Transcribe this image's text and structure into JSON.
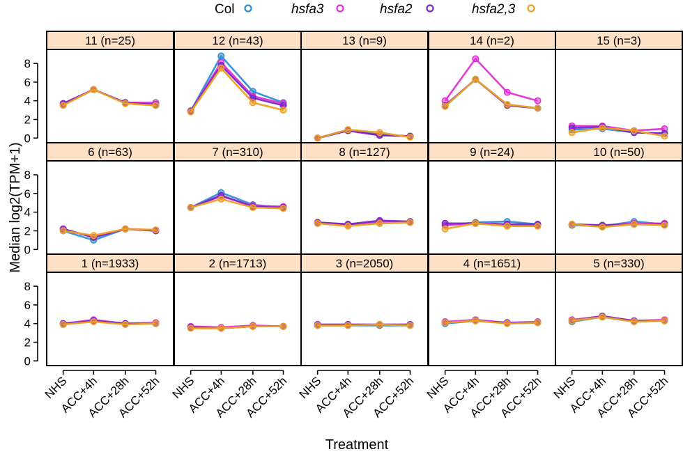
{
  "chart_data": {
    "type": "line",
    "title": "",
    "xlabel": "Treatment",
    "ylabel": "Median log2(TPM+1)",
    "categories": [
      "NHS",
      "ACC+4h",
      "ACC+28h",
      "ACC+52h"
    ],
    "ylim": [
      -0.5,
      9.5
    ],
    "yticks": [
      0,
      2,
      4,
      6,
      8
    ],
    "grid": false,
    "legend_position": "top",
    "legend": [
      {
        "name": "Col",
        "color": "#2e8fd6",
        "italic": false
      },
      {
        "name": "hsfa3",
        "color": "#e030d8",
        "italic": true
      },
      {
        "name": "hsfa2",
        "color": "#7a28c8",
        "italic": true
      },
      {
        "name": "hsfa2,3",
        "color": "#f0a020",
        "italic": true
      }
    ],
    "panels": [
      {
        "label": "11 (n=25)",
        "series": [
          {
            "name": "Col",
            "values": [
              3.6,
              5.2,
              3.8,
              3.5
            ]
          },
          {
            "name": "hsfa3",
            "values": [
              3.7,
              5.2,
              3.8,
              3.8
            ]
          },
          {
            "name": "hsfa2",
            "values": [
              3.7,
              5.2,
              3.8,
              3.6
            ]
          },
          {
            "name": "hsfa2,3",
            "values": [
              3.5,
              5.2,
              3.7,
              3.5
            ]
          }
        ]
      },
      {
        "label": "12 (n=43)",
        "series": [
          {
            "name": "Col",
            "values": [
              2.9,
              8.8,
              5.0,
              3.8
            ]
          },
          {
            "name": "hsfa3",
            "values": [
              2.9,
              8.1,
              4.5,
              3.7
            ]
          },
          {
            "name": "hsfa2",
            "values": [
              2.9,
              7.8,
              4.3,
              3.5
            ]
          },
          {
            "name": "hsfa2,3",
            "values": [
              2.8,
              7.5,
              3.8,
              3.0
            ]
          }
        ]
      },
      {
        "label": "13 (n=9)",
        "series": [
          {
            "name": "Col",
            "values": [
              0.0,
              0.9,
              0.4,
              0.2
            ]
          },
          {
            "name": "hsfa3",
            "values": [
              0.0,
              0.8,
              0.3,
              0.2
            ]
          },
          {
            "name": "hsfa2",
            "values": [
              0.0,
              0.8,
              0.3,
              0.2
            ]
          },
          {
            "name": "hsfa2,3",
            "values": [
              0.0,
              0.9,
              0.6,
              0.1
            ]
          }
        ]
      },
      {
        "label": "14 (n=2)",
        "series": [
          {
            "name": "Col",
            "values": [
              3.4,
              6.3,
              3.6,
              3.2
            ]
          },
          {
            "name": "hsfa3",
            "values": [
              4.0,
              8.5,
              4.9,
              4.0
            ]
          },
          {
            "name": "hsfa2",
            "values": [
              3.5,
              6.3,
              3.5,
              3.2
            ]
          },
          {
            "name": "hsfa2,3",
            "values": [
              3.4,
              6.3,
              3.6,
              3.2
            ]
          }
        ]
      },
      {
        "label": "15 (n=3)",
        "series": [
          {
            "name": "Col",
            "values": [
              0.9,
              1.0,
              0.6,
              0.5
            ]
          },
          {
            "name": "hsfa3",
            "values": [
              1.3,
              1.3,
              0.8,
              1.0
            ]
          },
          {
            "name": "hsfa2",
            "values": [
              1.1,
              1.2,
              0.6,
              0.5
            ]
          },
          {
            "name": "hsfa2,3",
            "values": [
              0.6,
              1.1,
              0.8,
              0.2
            ]
          }
        ]
      },
      {
        "label": "6 (n=63)",
        "series": [
          {
            "name": "Col",
            "values": [
              2.0,
              1.0,
              2.2,
              2.0
            ]
          },
          {
            "name": "hsfa3",
            "values": [
              2.2,
              1.3,
              2.2,
              2.1
            ]
          },
          {
            "name": "hsfa2",
            "values": [
              2.2,
              1.3,
              2.2,
              2.0
            ]
          },
          {
            "name": "hsfa2,3",
            "values": [
              2.0,
              1.5,
              2.2,
              2.1
            ]
          }
        ]
      },
      {
        "label": "7 (n=310)",
        "series": [
          {
            "name": "Col",
            "values": [
              4.5,
              6.1,
              4.8,
              4.5
            ]
          },
          {
            "name": "hsfa3",
            "values": [
              4.5,
              5.7,
              4.7,
              4.6
            ]
          },
          {
            "name": "hsfa2",
            "values": [
              4.5,
              5.8,
              4.6,
              4.5
            ]
          },
          {
            "name": "hsfa2,3",
            "values": [
              4.5,
              5.4,
              4.5,
              4.4
            ]
          }
        ]
      },
      {
        "label": "8 (n=127)",
        "series": [
          {
            "name": "Col",
            "values": [
              2.8,
              2.7,
              2.8,
              2.9
            ]
          },
          {
            "name": "hsfa3",
            "values": [
              2.9,
              2.7,
              3.0,
              2.9
            ]
          },
          {
            "name": "hsfa2",
            "values": [
              2.9,
              2.7,
              3.1,
              3.0
            ]
          },
          {
            "name": "hsfa2,3",
            "values": [
              2.8,
              2.5,
              2.8,
              2.9
            ]
          }
        ]
      },
      {
        "label": "9 (n=24)",
        "series": [
          {
            "name": "Col",
            "values": [
              2.6,
              2.9,
              3.0,
              2.7
            ]
          },
          {
            "name": "hsfa3",
            "values": [
              2.6,
              2.8,
              2.7,
              2.6
            ]
          },
          {
            "name": "hsfa2",
            "values": [
              2.8,
              2.8,
              2.7,
              2.7
            ]
          },
          {
            "name": "hsfa2,3",
            "values": [
              2.2,
              2.8,
              2.5,
              2.5
            ]
          }
        ]
      },
      {
        "label": "10 (n=50)",
        "series": [
          {
            "name": "Col",
            "values": [
              2.6,
              2.5,
              3.0,
              2.7
            ]
          },
          {
            "name": "hsfa3",
            "values": [
              2.7,
              2.6,
              2.8,
              2.8
            ]
          },
          {
            "name": "hsfa2",
            "values": [
              2.7,
              2.6,
              2.7,
              2.7
            ]
          },
          {
            "name": "hsfa2,3",
            "values": [
              2.7,
              2.4,
              2.7,
              2.6
            ]
          }
        ]
      },
      {
        "label": "1 (n=1933)",
        "series": [
          {
            "name": "Col",
            "values": [
              3.9,
              4.3,
              4.0,
              4.0
            ]
          },
          {
            "name": "hsfa3",
            "values": [
              4.0,
              4.4,
              4.0,
              4.1
            ]
          },
          {
            "name": "hsfa2",
            "values": [
              4.0,
              4.3,
              4.0,
              4.0
            ]
          },
          {
            "name": "hsfa2,3",
            "values": [
              3.9,
              4.2,
              3.9,
              4.0
            ]
          }
        ]
      },
      {
        "label": "2 (n=1713)",
        "series": [
          {
            "name": "Col",
            "values": [
              3.6,
              3.5,
              3.7,
              3.7
            ]
          },
          {
            "name": "hsfa3",
            "values": [
              3.7,
              3.6,
              3.8,
              3.7
            ]
          },
          {
            "name": "hsfa2",
            "values": [
              3.6,
              3.5,
              3.7,
              3.7
            ]
          },
          {
            "name": "hsfa2,3",
            "values": [
              3.5,
              3.5,
              3.7,
              3.7
            ]
          }
        ]
      },
      {
        "label": "3 (n=2050)",
        "series": [
          {
            "name": "Col",
            "values": [
              3.8,
              3.8,
              3.8,
              3.8
            ]
          },
          {
            "name": "hsfa3",
            "values": [
              3.9,
              3.9,
              3.9,
              3.9
            ]
          },
          {
            "name": "hsfa2",
            "values": [
              3.9,
              3.9,
              3.9,
              3.9
            ]
          },
          {
            "name": "hsfa2,3",
            "values": [
              3.8,
              3.8,
              3.9,
              3.8
            ]
          }
        ]
      },
      {
        "label": "4 (n=1651)",
        "series": [
          {
            "name": "Col",
            "values": [
              4.0,
              4.3,
              4.1,
              4.1
            ]
          },
          {
            "name": "hsfa3",
            "values": [
              4.2,
              4.4,
              4.1,
              4.2
            ]
          },
          {
            "name": "hsfa2",
            "values": [
              4.1,
              4.3,
              4.1,
              4.1
            ]
          },
          {
            "name": "hsfa2,3",
            "values": [
              4.1,
              4.3,
              4.0,
              4.1
            ]
          }
        ]
      },
      {
        "label": "5 (n=330)",
        "series": [
          {
            "name": "Col",
            "values": [
              4.2,
              4.7,
              4.2,
              4.3
            ]
          },
          {
            "name": "hsfa3",
            "values": [
              4.4,
              4.8,
              4.3,
              4.4
            ]
          },
          {
            "name": "hsfa2",
            "values": [
              4.3,
              4.8,
              4.3,
              4.3
            ]
          },
          {
            "name": "hsfa2,3",
            "values": [
              4.3,
              4.7,
              4.2,
              4.3
            ]
          }
        ]
      }
    ]
  }
}
